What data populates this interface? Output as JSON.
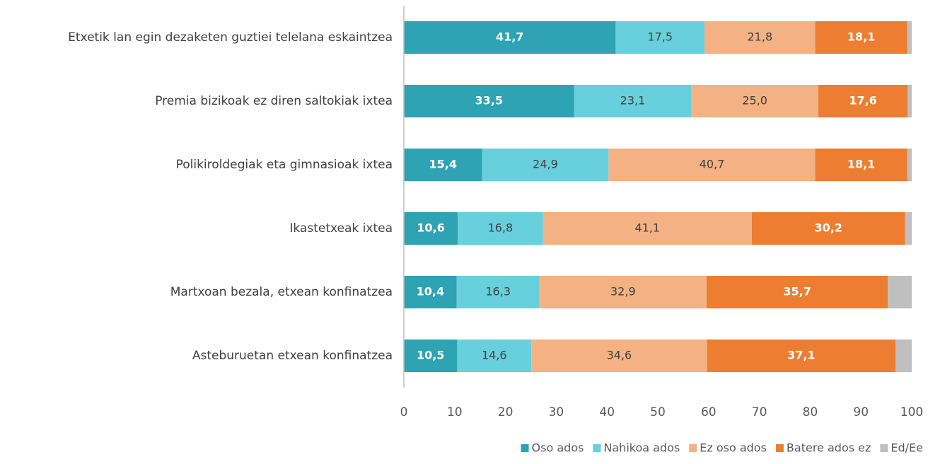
{
  "chart_data": {
    "type": "stacked-barh",
    "categories": [
      "Etxetik lan egin dezaketen guztiei telelana eskaintzea",
      "Premia bizikoak ez diren saltokiak ixtea",
      "Polikiroldegiak eta gimnasioak ixtea",
      "Ikastetxeak ixtea",
      "Martxoan bezala, etxean konfinatzea",
      "Asteburuetan etxean konfinatzea"
    ],
    "series": [
      {
        "name": "Oso ados",
        "color": "#2ea3b4",
        "values": [
          41.7,
          33.5,
          15.4,
          10.6,
          10.4,
          10.5
        ],
        "value_labels": [
          "41,7",
          "33,5",
          "15,4",
          "10,6",
          "10,4",
          "10,5"
        ]
      },
      {
        "name": "Nahikoa ados",
        "color": "#68cfdc",
        "values": [
          17.5,
          23.1,
          24.9,
          16.8,
          16.3,
          14.6
        ],
        "value_labels": [
          "17,5",
          "23,1",
          "24,9",
          "16,8",
          "16,3",
          "14,6"
        ]
      },
      {
        "name": "Ez oso ados",
        "color": "#f4b183",
        "values": [
          21.8,
          25.0,
          40.7,
          41.1,
          32.9,
          34.6
        ],
        "value_labels": [
          "21,8",
          "25,0",
          "40,7",
          "41,1",
          "32,9",
          "34,6"
        ]
      },
      {
        "name": "Batere ados ez",
        "color": "#ed7d31",
        "values": [
          18.1,
          17.6,
          18.1,
          30.2,
          35.7,
          37.1
        ],
        "value_labels": [
          "18,1",
          "17,6",
          "18,1",
          "30,2",
          "35,7",
          "37,1"
        ]
      },
      {
        "name": "Ed/Ee",
        "color": "#bfbfbf",
        "values": [
          0.9,
          0.8,
          0.9,
          1.3,
          4.7,
          3.2
        ]
      }
    ],
    "xlim": [
      0,
      100
    ],
    "xticks": [
      0,
      10,
      20,
      30,
      40,
      50,
      60,
      70,
      80,
      90,
      100
    ],
    "legend": "bottom"
  }
}
